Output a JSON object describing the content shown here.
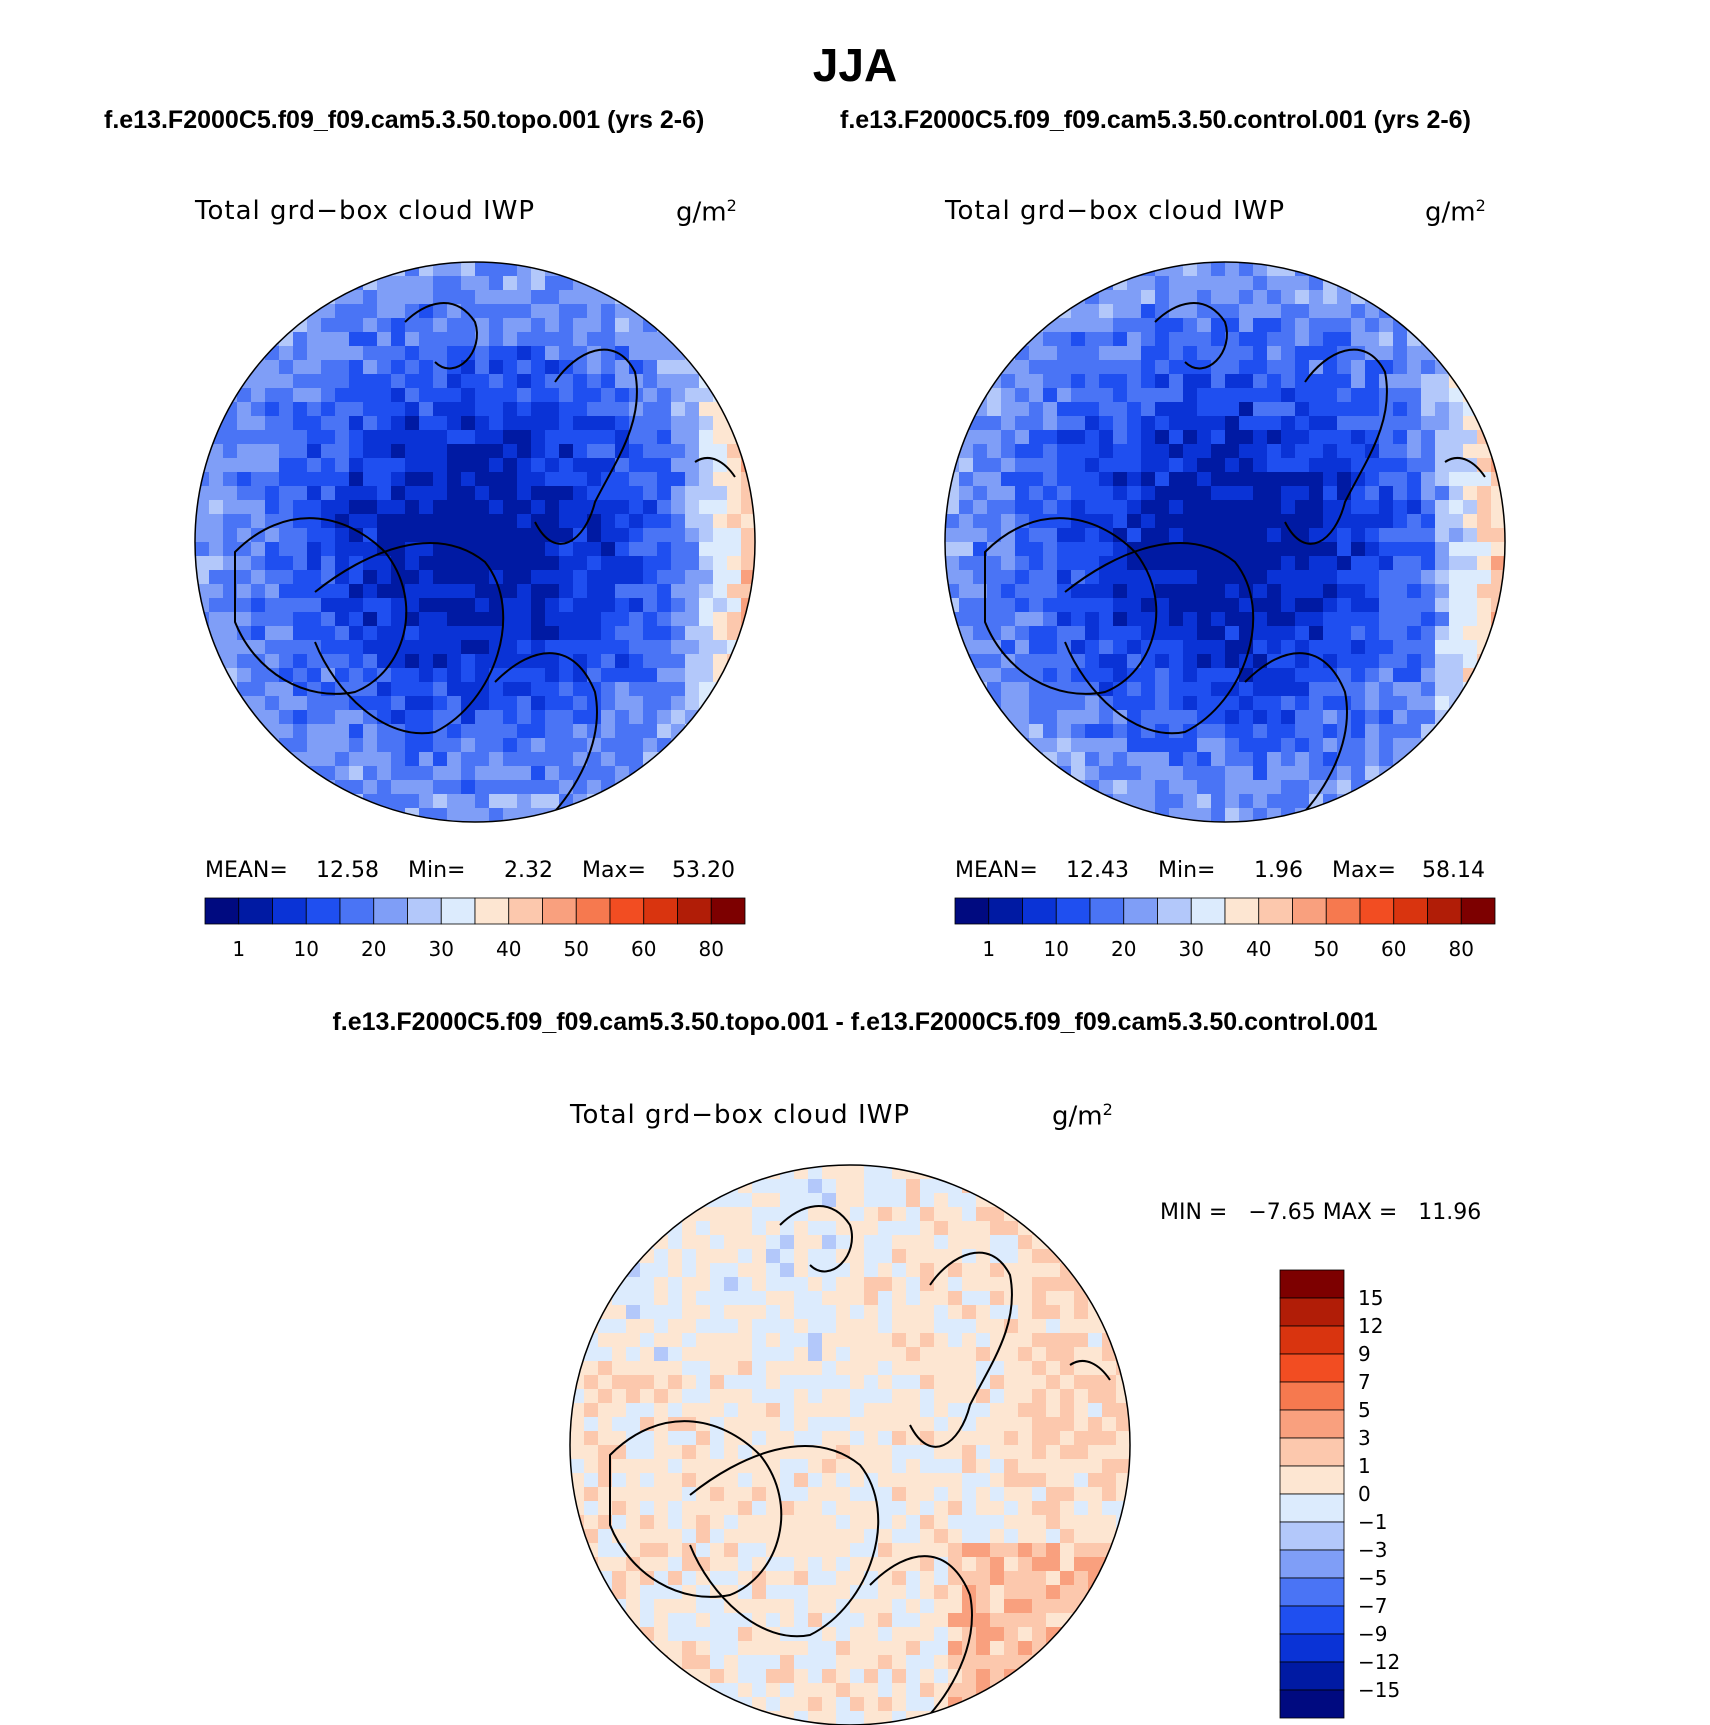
{
  "figure": {
    "season": "JJA"
  },
  "panels": [
    {
      "run_title": "f.e13.F2000C5.f09_f09.cam5.3.50.topo.001 (yrs 2-6)",
      "variable": "Total grd−box cloud IWP",
      "units": "g/m",
      "units_exp": "2",
      "stats": {
        "mean_label": "MEAN=",
        "mean": "12.58",
        "min_label": "Min=",
        "min": "2.32",
        "max_label": "Max=",
        "max": "53.20"
      }
    },
    {
      "run_title": "f.e13.F2000C5.f09_f09.cam5.3.50.control.001 (yrs 2-6)",
      "variable": "Total grd−box cloud IWP",
      "units": "g/m",
      "units_exp": "2",
      "stats": {
        "mean_label": "MEAN=",
        "mean": "12.43",
        "min_label": "Min=",
        "min": "1.96",
        "max_label": "Max=",
        "max": "58.14"
      }
    }
  ],
  "difference": {
    "title": "f.e13.F2000C5.f09_f09.cam5.3.50.topo.001 - f.e13.F2000C5.f09_f09.cam5.3.50.control.001",
    "variable": "Total grd−box cloud IWP",
    "units": "g/m",
    "units_exp": "2",
    "minmax_text": "MIN =   −7.65 MAX =   11.96"
  },
  "colors": {
    "abs_scale": [
      "#000a80",
      "#001aa3",
      "#0a33d6",
      "#1f4ff0",
      "#4a74f5",
      "#7f9ef7",
      "#b3c8fa",
      "#dcebfd",
      "#fde6d2",
      "#fcc8ad",
      "#f9a07e",
      "#f6794f",
      "#f24d22",
      "#d9340f",
      "#b11d07",
      "#7d0000"
    ],
    "diff_scale": [
      "#000a80",
      "#001aa3",
      "#0a33d6",
      "#1f4ff0",
      "#4a74f5",
      "#7f9ef7",
      "#b3c8fa",
      "#dcebfd",
      "#fde6d2",
      "#fcc8ad",
      "#f9a07e",
      "#f6794f",
      "#f24d22",
      "#d9340f",
      "#b11d07",
      "#7d0000"
    ],
    "coast": "#000000"
  },
  "chart_data": [
    {
      "type": "heatmap",
      "title": "Total grd−box cloud IWP",
      "projection": "north polar stereographic",
      "colorbar_orientation": "horizontal",
      "colorbar_ticks": [
        "1",
        "10",
        "20",
        "30",
        "40",
        "50",
        "60",
        "80"
      ],
      "stats": {
        "mean": 12.58,
        "min": 2.32,
        "max": 53.2
      }
    },
    {
      "type": "heatmap",
      "title": "Total grd−box cloud IWP",
      "projection": "north polar stereographic",
      "colorbar_orientation": "horizontal",
      "colorbar_ticks": [
        "1",
        "10",
        "20",
        "30",
        "40",
        "50",
        "60",
        "80"
      ],
      "stats": {
        "mean": 12.43,
        "min": 1.96,
        "max": 58.14
      }
    },
    {
      "type": "heatmap",
      "title": "Total grd−box cloud IWP",
      "projection": "north polar stereographic",
      "colorbar_orientation": "vertical",
      "colorbar_ticks": [
        "15",
        "12",
        "9",
        "7",
        "5",
        "3",
        "1",
        "0",
        "−1",
        "−3",
        "−5",
        "−7",
        "−9",
        "−12",
        "−15"
      ],
      "stats": {
        "min": -7.65,
        "max": 11.96
      }
    }
  ]
}
